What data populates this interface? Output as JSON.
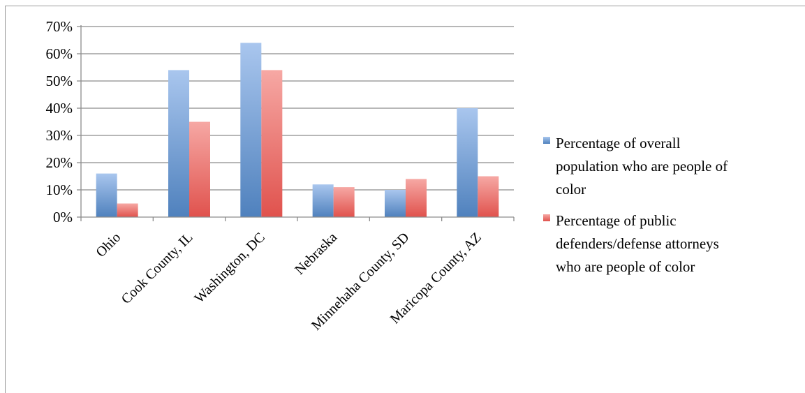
{
  "chart_data": {
    "type": "bar",
    "title": "",
    "xlabel": "",
    "ylabel": "",
    "ylim": [
      0,
      0.7
    ],
    "yticks": [
      "0%",
      "10%",
      "20%",
      "30%",
      "40%",
      "50%",
      "60%",
      "70%"
    ],
    "ytick_values": [
      0,
      0.1,
      0.2,
      0.3,
      0.4,
      0.5,
      0.6,
      0.7
    ],
    "grid": true,
    "legend_position": "right",
    "categories": [
      "Ohio",
      "Cook County, IL",
      "Washington, DC",
      "Nebraska",
      "Minnehaha County, SD",
      "Maricopa County, AZ"
    ],
    "series": [
      {
        "name": "Percentage of overall population who are people of color",
        "legend_lines": [
          "Percentage of overall",
          "population who are people of",
          "color"
        ],
        "color": "#4f81bd",
        "color_light": "#a9c6ee",
        "values": [
          0.16,
          0.54,
          0.64,
          0.12,
          0.1,
          0.4
        ]
      },
      {
        "name": "Percentage of public defenders/defense attorneys who are people of color",
        "legend_lines": [
          "Percentage of public",
          "defenders/defense attorneys",
          "who are people of color"
        ],
        "color": "#e0524d",
        "color_light": "#f6a8a4",
        "values": [
          0.05,
          0.35,
          0.54,
          0.11,
          0.14,
          0.15
        ]
      }
    ]
  }
}
